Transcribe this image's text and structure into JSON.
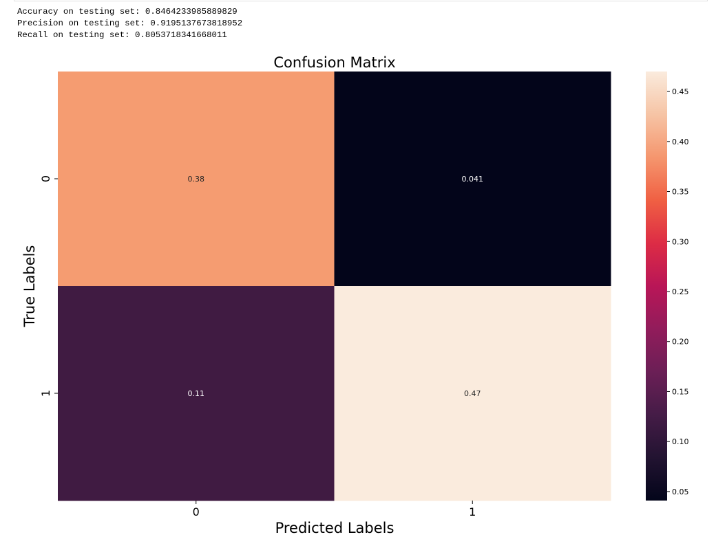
{
  "output_lines": [
    "Accuracy on testing set: 0.8464233985889829",
    "Precision on testing set: 0.9195137673818952",
    "Recall on testing set: 0.8053718341668011"
  ],
  "chart_data": {
    "type": "heatmap",
    "title": "Confusion Matrix",
    "xlabel": "Predicted Labels",
    "ylabel": "True Labels",
    "x_categories": [
      "0",
      "1"
    ],
    "y_categories": [
      "0",
      "1"
    ],
    "values": [
      [
        0.38,
        0.041
      ],
      [
        0.11,
        0.47
      ]
    ],
    "annotations": [
      [
        "0.38",
        "0.041"
      ],
      [
        "0.11",
        "0.47"
      ]
    ],
    "cell_colors": [
      [
        "#f59c71",
        "#03051a"
      ],
      [
        "#401b42",
        "#faebdd"
      ]
    ],
    "colorbar": {
      "colormap": "rocket",
      "range": [
        0.041,
        0.47
      ],
      "ticks": [
        0.05,
        0.1,
        0.15,
        0.2,
        0.25,
        0.3,
        0.35,
        0.4,
        0.45
      ],
      "tick_labels": [
        "0.05",
        "0.10",
        "0.15",
        "0.20",
        "0.25",
        "0.30",
        "0.35",
        "0.40",
        "0.45"
      ]
    }
  }
}
